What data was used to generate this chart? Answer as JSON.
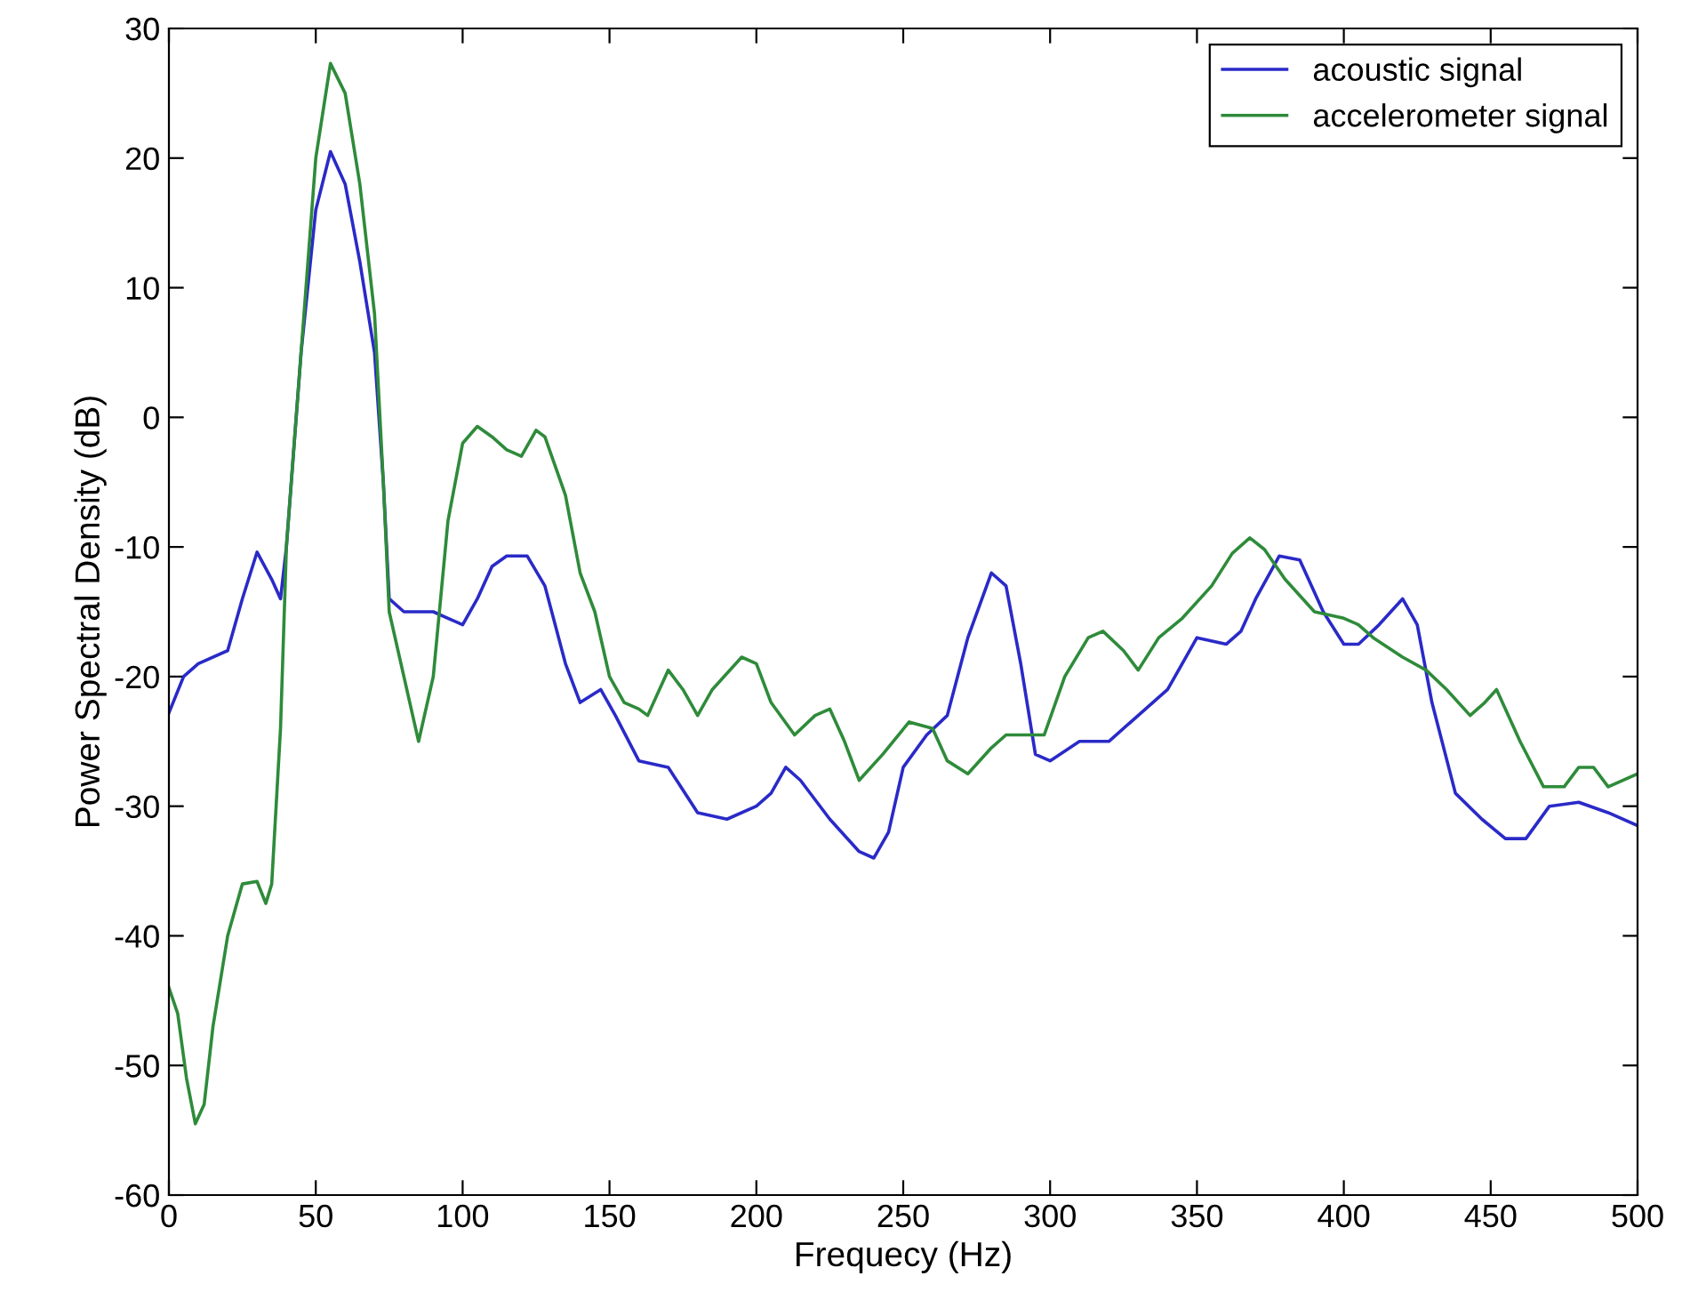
{
  "chart_data": {
    "type": "line",
    "xlabel": "Frequecy (Hz)",
    "ylabel": "Power Spectral Density (dB)",
    "xlim": [
      0,
      500
    ],
    "ylim": [
      -60,
      30
    ],
    "xticks": [
      0,
      50,
      100,
      150,
      200,
      250,
      300,
      350,
      400,
      450,
      500
    ],
    "yticks": [
      -60,
      -50,
      -40,
      -30,
      -20,
      -10,
      0,
      10,
      20,
      30
    ],
    "grid": false,
    "legend": "top right",
    "marker": "none",
    "line_style": "solid",
    "series": [
      {
        "name": "acoustic signal",
        "color": "#2a2ac8",
        "x": [
          0,
          5,
          10,
          20,
          25,
          30,
          35,
          38,
          40,
          45,
          50,
          55,
          60,
          65,
          70,
          73,
          75,
          80,
          90,
          95,
          100,
          105,
          110,
          115,
          122,
          128,
          135,
          140,
          147,
          152,
          160,
          170,
          180,
          190,
          200,
          205,
          210,
          215,
          225,
          235,
          240,
          245,
          250,
          258,
          265,
          272,
          280,
          285,
          290,
          295,
          300,
          310,
          320,
          330,
          340,
          350,
          360,
          365,
          370,
          378,
          385,
          393,
          400,
          405,
          412,
          420,
          425,
          430,
          438,
          447,
          455,
          462,
          470,
          480,
          490,
          500
        ],
        "values": [
          -22.8,
          -20,
          -19,
          -18,
          -14,
          -10.4,
          -12.5,
          -14,
          -10,
          5,
          16,
          20.5,
          18,
          12,
          5,
          -5,
          -14,
          -15,
          -15,
          -15.5,
          -16,
          -14,
          -11.5,
          -10.7,
          -10.7,
          -13,
          -19,
          -22,
          -21,
          -23,
          -26.5,
          -27,
          -30.5,
          -31,
          -30,
          -29,
          -27,
          -28,
          -31,
          -33.5,
          -34,
          -32,
          -27,
          -24.5,
          -23,
          -17,
          -12,
          -13,
          -19,
          -26,
          -26.5,
          -25,
          -25,
          -23,
          -21,
          -17,
          -17.5,
          -16.5,
          -14,
          -10.7,
          -11,
          -15,
          -17.5,
          -17.5,
          -16,
          -14,
          -16,
          -22,
          -29,
          -31,
          -32.5,
          -32.5,
          -30,
          -29.7,
          -30.5,
          -31.5
        ]
      },
      {
        "name": "accelerometer signal",
        "color": "#2e8b3a",
        "x": [
          0,
          3,
          6,
          9,
          12,
          15,
          20,
          25,
          30,
          33,
          35,
          38,
          40,
          45,
          50,
          55,
          60,
          65,
          70,
          73,
          75,
          80,
          85,
          90,
          95,
          100,
          105,
          110,
          115,
          120,
          125,
          128,
          135,
          140,
          145,
          150,
          155,
          160,
          163,
          170,
          175,
          180,
          185,
          195,
          200,
          205,
          213,
          220,
          225,
          230,
          235,
          243,
          252,
          260,
          265,
          272,
          280,
          285,
          292,
          298,
          305,
          313,
          318,
          325,
          330,
          337,
          345,
          355,
          362,
          368,
          373,
          380,
          390,
          400,
          405,
          410,
          420,
          428,
          435,
          443,
          448,
          452,
          460,
          468,
          475,
          480,
          485,
          490,
          500
        ],
        "values": [
          -44,
          -46,
          -51,
          -54.5,
          -53,
          -47,
          -40,
          -36,
          -35.8,
          -37.5,
          -36,
          -24,
          -10,
          5,
          20,
          27.3,
          25,
          18,
          8,
          -5,
          -15,
          -20,
          -25,
          -20,
          -8,
          -2,
          -0.7,
          -1.5,
          -2.5,
          -3,
          -1,
          -1.5,
          -6,
          -12,
          -15,
          -20,
          -22,
          -22.5,
          -23,
          -19.5,
          -21,
          -23,
          -21,
          -18.5,
          -19,
          -22,
          -24.5,
          -23,
          -22.5,
          -25,
          -28,
          -26,
          -23.5,
          -24,
          -26.5,
          -27.5,
          -25.5,
          -24.5,
          -24.5,
          -24.5,
          -20,
          -17,
          -16.5,
          -18,
          -19.5,
          -17,
          -15.5,
          -13,
          -10.5,
          -9.3,
          -10.2,
          -12.5,
          -15,
          -15.5,
          -16,
          -17,
          -18.5,
          -19.5,
          -21,
          -23,
          -22,
          -21,
          -25,
          -28.5,
          -28.5,
          -27,
          -27,
          -28.5,
          -27.5
        ]
      }
    ]
  }
}
